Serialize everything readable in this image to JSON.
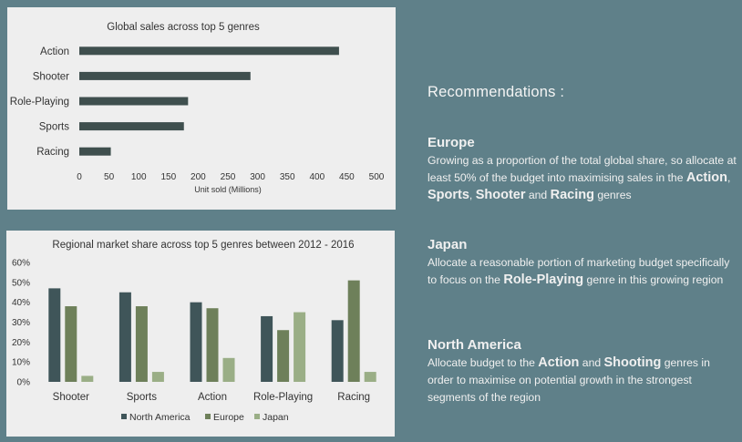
{
  "chart_data": [
    {
      "type": "bar",
      "orientation": "horizontal",
      "title": "Global sales across top 5 genres",
      "categories": [
        "Action",
        "Shooter",
        "Role-Playing",
        "Sports",
        "Racing"
      ],
      "values": [
        437,
        288,
        183,
        176,
        53
      ],
      "xlabel": "Unit sold (Millions)",
      "ylabel": "",
      "xlim": [
        0,
        500
      ],
      "xticks": [
        "0",
        "50",
        "100",
        "150",
        "200",
        "250",
        "300",
        "350",
        "400",
        "450",
        "500"
      ],
      "color": "#3f4f4e",
      "grid": false
    },
    {
      "type": "bar",
      "title": "Regional market share across top 5 genres between 2012 - 2016",
      "categories": [
        "Shooter",
        "Sports",
        "Action",
        "Role-Playing",
        "Racing"
      ],
      "series": [
        {
          "name": "North America",
          "color": "#3f5559",
          "values": [
            47,
            45,
            40,
            33,
            31
          ]
        },
        {
          "name": "Europe",
          "color": "#6e805a",
          "values": [
            38,
            38,
            37,
            26,
            51
          ]
        },
        {
          "name": "Japan",
          "color": "#9aae86",
          "values": [
            3,
            5,
            12,
            35,
            5
          ]
        }
      ],
      "ylim": [
        0,
        60
      ],
      "yticks": [
        "0%",
        "10%",
        "20%",
        "30%",
        "40%",
        "50%",
        "60%"
      ],
      "legend": "bottom",
      "grid": false
    }
  ],
  "recommendations": {
    "title": "Recommendations :",
    "europe": {
      "heading": "Europe",
      "t1": "Growing as a proportion of the total global share, so allocate at least 50% of the budget into maximising sales in the ",
      "b1": "Action",
      "t2": ", ",
      "b2": "Sports",
      "t3": ", ",
      "b3": "Shooter",
      "t4": " and ",
      "b4": "Racing",
      "t5": " genres"
    },
    "japan": {
      "heading": "Japan",
      "t1": "Allocate a reasonable portion of marketing budget specifically to focus on the ",
      "b1": "Role-Playing",
      "t2": " genre in this growing region"
    },
    "north_america": {
      "heading": "North America",
      "t1": "Allocate budget to the ",
      "b1": "Action",
      "t2": " and ",
      "b2": "Shooting",
      "t3": " genres in order to maximise on potential growth in the strongest segments of the region"
    }
  }
}
